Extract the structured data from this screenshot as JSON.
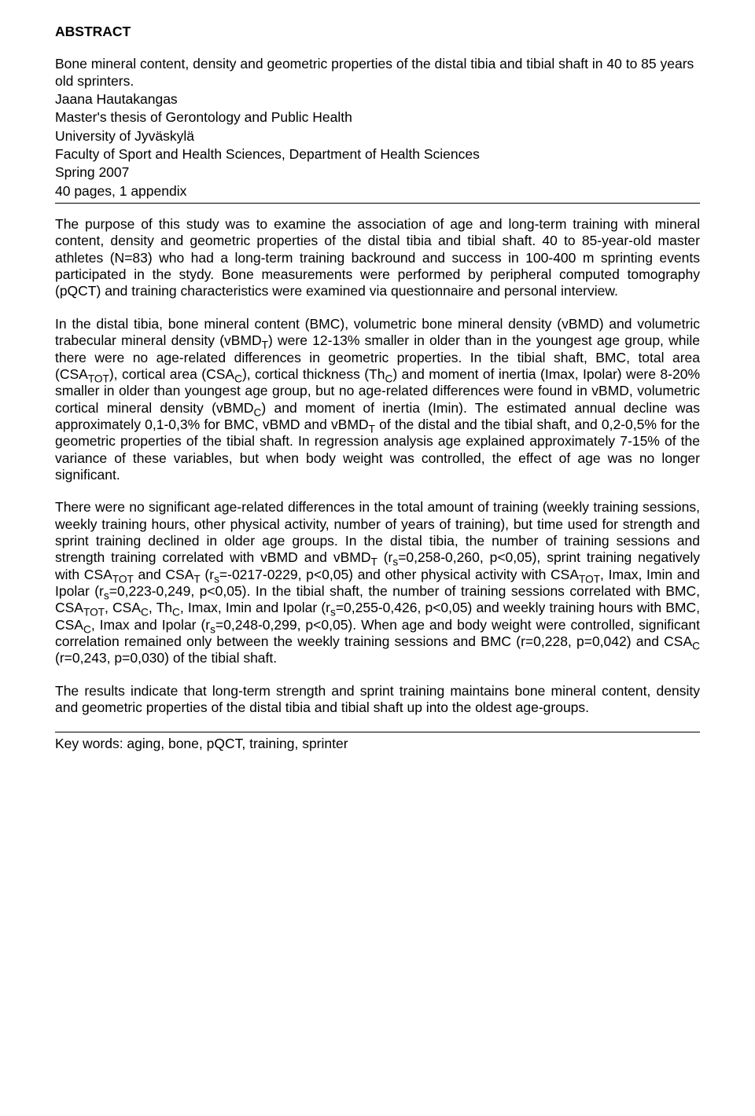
{
  "heading": "ABSTRACT",
  "title": "Bone mineral content, density and geometric properties of the distal tibia and tibial shaft in 40 to 85 years old sprinters.",
  "author": "Jaana Hautakangas",
  "thesis": "Master's thesis of Gerontology and Public Health",
  "university": "University of Jyväskylä",
  "faculty": "Faculty of Sport and Health Sciences, Department of Health Sciences",
  "term": "Spring 2007",
  "pages": "40 pages, 1 appendix",
  "para1_a": "The purpose of this study was to examine the association of age and long-term training with mineral content, density and geometric properties of the distal tibia and tibial shaft. 40 to 85-year-old master athletes (N=83) who had a long-term training backround and success in 100-400 m sprinting events participated in the stydy. Bone measurements were performed by peripheral computed tomography (pQCT) and training characteristics were examined via questionnaire and personal interview.",
  "para2_a": "In the distal tibia, bone mineral content (BMC), volumetric bone mineral density (vBMD) and volumetric trabecular mineral density (vBMD",
  "para2_b": ") were 12-13% smaller in older than in the youngest age group, while there were no age-related differences in geometric properties. In the tibial shaft, BMC, total area (CSA",
  "para2_c": "), cortical area (CSA",
  "para2_d": "), cortical thickness (Th",
  "para2_e": ") and moment of inertia (Imax, Ipolar) were 8-20% smaller in older than youngest age group, but no age-related differences were found in vBMD, volumetric cortical mineral density (vBMD",
  "para2_f": ") and moment of inertia (Imin). The estimated annual decline was approximately 0,1-0,3% for BMC, vBMD and vBMD",
  "para2_g": " of the distal and the tibial shaft, and 0,2-0,5% for the geometric properties of the tibial shaft. In regression analysis age explained approximately 7-15% of the variance of these variables, but when body weight was controlled, the effect of age was no longer significant.",
  "para3_a": "There were no significant age-related differences in the total amount of training (weekly training sessions, weekly training hours, other physical activity, number of years of training), but time used for strength and sprint training declined in older age groups. In the distal tibia, the number of training sessions and strength training correlated with vBMD and vBMD",
  "para3_b": " (r",
  "para3_c": "=0,258-0,260, p<0,05), sprint training negatively with CSA",
  "para3_d": " and CSA",
  "para3_e": " (r",
  "para3_f": "=-0217-0229, p<0,05) and other physical activity with CSA",
  "para3_g": ", Imax, Imin and Ipolar (r",
  "para3_h": "=0,223-0,249, p<0,05). In the tibial shaft, the number of training sessions correlated with BMC, CSA",
  "para3_i": ", CSA",
  "para3_j": ", Th",
  "para3_k": ", Imax, Imin and Ipolar (r",
  "para3_l": "=0,255-0,426, p<0,05) and weekly training hours with BMC, CSA",
  "para3_m": ", Imax and Ipolar (r",
  "para3_n": "=0,248-0,299, p<0,05). When age and body weight were controlled, significant correlation remained only between the weekly training sessions and BMC (r=0,228, p=0,042) and  CSA",
  "para3_o": " (r=0,243, p=0,030) of the tibial shaft.",
  "para4": "The results indicate that long-term strength and sprint training maintains bone mineral content, density and geometric properties of the distal tibia and tibial shaft up into the oldest age-groups.",
  "keywords": "Key words: aging, bone, pQCT, training, sprinter",
  "sub_T": "T",
  "sub_TOT": "TOT",
  "sub_C": "C",
  "sub_s": "s"
}
